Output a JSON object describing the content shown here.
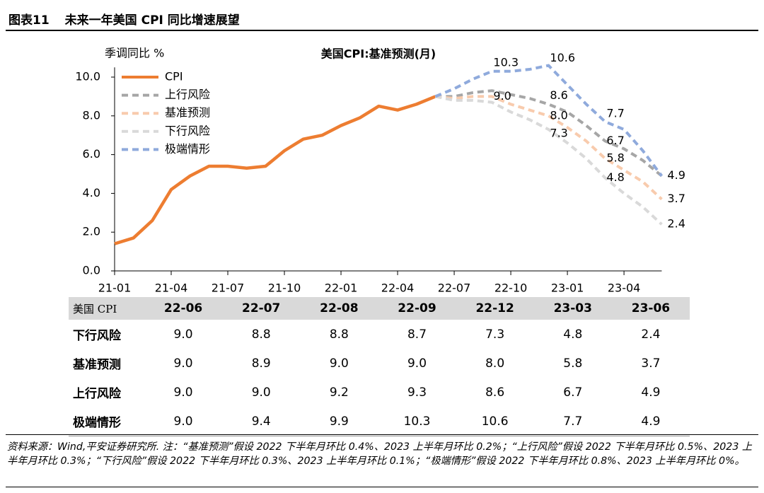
{
  "header": {
    "figure_number": "图表11",
    "title": "未来一年美国 CPI 同比增速展望"
  },
  "chart_data": {
    "type": "line",
    "title": "美国CPI:基准预测(月)",
    "y_label": "季调同比 %",
    "categories": [
      "21-01",
      null,
      null,
      "21-04",
      null,
      null,
      "21-07",
      null,
      null,
      "21-10",
      null,
      null,
      "22-01",
      null,
      null,
      "22-04",
      null,
      null,
      "22-07",
      null,
      null,
      "22-10",
      null,
      null,
      "23-01",
      null,
      null,
      "23-04",
      null,
      null
    ],
    "series": [
      {
        "name": "CPI",
        "color": "#ED7D31",
        "dashed": false,
        "values": [
          1.4,
          1.7,
          2.6,
          4.2,
          4.9,
          5.4,
          5.4,
          5.3,
          5.4,
          6.2,
          6.8,
          7.0,
          7.5,
          7.9,
          8.5,
          8.3,
          8.6,
          9.0,
          null,
          null,
          null,
          null,
          null,
          null,
          null,
          null,
          null,
          null,
          null,
          null
        ]
      },
      {
        "name": "上行风险",
        "color": "#A6A6A6",
        "dashed": true,
        "values": [
          null,
          null,
          null,
          null,
          null,
          null,
          null,
          null,
          null,
          null,
          null,
          null,
          null,
          null,
          null,
          null,
          null,
          9.0,
          9.0,
          9.2,
          9.3,
          9.1,
          8.9,
          8.6,
          8.2,
          7.5,
          6.7,
          6.3,
          5.7,
          4.9
        ],
        "value_labels": [
          null,
          null,
          null,
          null,
          null,
          null,
          null,
          null,
          null,
          null,
          null,
          null,
          null,
          null,
          null,
          null,
          null,
          null,
          null,
          null,
          null,
          null,
          null,
          "8.6",
          null,
          null,
          "6.7",
          null,
          null,
          "4.9"
        ]
      },
      {
        "name": "基准预测",
        "color": "#F8CBAD",
        "dashed": true,
        "values": [
          null,
          null,
          null,
          null,
          null,
          null,
          null,
          null,
          null,
          null,
          null,
          null,
          null,
          null,
          null,
          null,
          null,
          9.0,
          8.9,
          9.0,
          9.0,
          8.6,
          8.3,
          8.0,
          7.4,
          6.7,
          5.8,
          5.2,
          4.6,
          3.7
        ],
        "value_labels": [
          null,
          null,
          null,
          null,
          null,
          null,
          null,
          null,
          null,
          null,
          null,
          null,
          null,
          null,
          null,
          null,
          null,
          null,
          null,
          null,
          "9.0",
          null,
          null,
          "8.0",
          null,
          null,
          "5.8",
          null,
          null,
          "3.7"
        ]
      },
      {
        "name": "下行风险",
        "color": "#D9D9D9",
        "dashed": true,
        "values": [
          null,
          null,
          null,
          null,
          null,
          null,
          null,
          null,
          null,
          null,
          null,
          null,
          null,
          null,
          null,
          null,
          null,
          9.0,
          8.8,
          8.8,
          8.7,
          8.2,
          7.8,
          7.3,
          6.6,
          5.8,
          4.8,
          4.0,
          3.3,
          2.4
        ],
        "value_labels": [
          null,
          null,
          null,
          null,
          null,
          null,
          null,
          null,
          null,
          null,
          null,
          null,
          null,
          null,
          null,
          null,
          null,
          null,
          null,
          null,
          null,
          null,
          null,
          "7.3",
          null,
          null,
          "4.8",
          null,
          null,
          "2.4"
        ]
      },
      {
        "name": "极端情形",
        "color": "#8FAADC",
        "dashed": true,
        "values": [
          null,
          null,
          null,
          null,
          null,
          null,
          null,
          null,
          null,
          null,
          null,
          null,
          null,
          null,
          null,
          null,
          null,
          9.0,
          9.4,
          9.9,
          10.3,
          10.3,
          10.4,
          10.6,
          9.6,
          8.6,
          7.7,
          7.3,
          6.2,
          4.9
        ],
        "value_labels": [
          null,
          null,
          null,
          null,
          null,
          null,
          null,
          null,
          null,
          null,
          null,
          null,
          null,
          null,
          null,
          null,
          null,
          null,
          null,
          null,
          "10.3",
          null,
          null,
          "10.6",
          null,
          null,
          "7.7",
          null,
          null,
          null
        ]
      }
    ],
    "ylim": [
      0,
      10.5
    ],
    "yticks": [
      {
        "value": 0,
        "label": "0.0"
      },
      {
        "value": 2,
        "label": "2.0"
      },
      {
        "value": 4,
        "label": "4.0"
      },
      {
        "value": 6,
        "label": "6.0"
      },
      {
        "value": 8,
        "label": "8.0"
      },
      {
        "value": 10,
        "label": "10.0"
      }
    ],
    "grid": false,
    "legend": "upper left"
  },
  "table": {
    "header": [
      "美国 CPI",
      "22-06",
      "22-07",
      "22-08",
      "22-09",
      "22-12",
      "23-03",
      "23-06"
    ],
    "rows": [
      [
        "下行风险",
        "9.0",
        "8.8",
        "8.8",
        "8.7",
        "7.3",
        "4.8",
        "2.4"
      ],
      [
        "基准预测",
        "9.0",
        "8.9",
        "9.0",
        "9.0",
        "8.0",
        "5.8",
        "3.7"
      ],
      [
        "上行风险",
        "9.0",
        "9.0",
        "9.2",
        "9.3",
        "8.6",
        "6.7",
        "4.9"
      ],
      [
        "极端情形",
        "9.0",
        "9.4",
        "9.9",
        "10.3",
        "10.6",
        "7.7",
        "4.9"
      ]
    ]
  },
  "footnote": "资料来源：Wind,平安证券研究所. 注：“基准预测”假设 2022 下半年月环比 0.4%、2023 上半年月环比 0.2%；“上行风险”假设 2022 下半年月环比 0.5%、2023 上半年月环比 0.3%；“下行风险”假设 2022 下半年月环比 0.3%、2023 上半年月环比 0.1%；“极端情形”假设 2022 下半年月环比 0.8%、2023 上半年月环比 0%。"
}
